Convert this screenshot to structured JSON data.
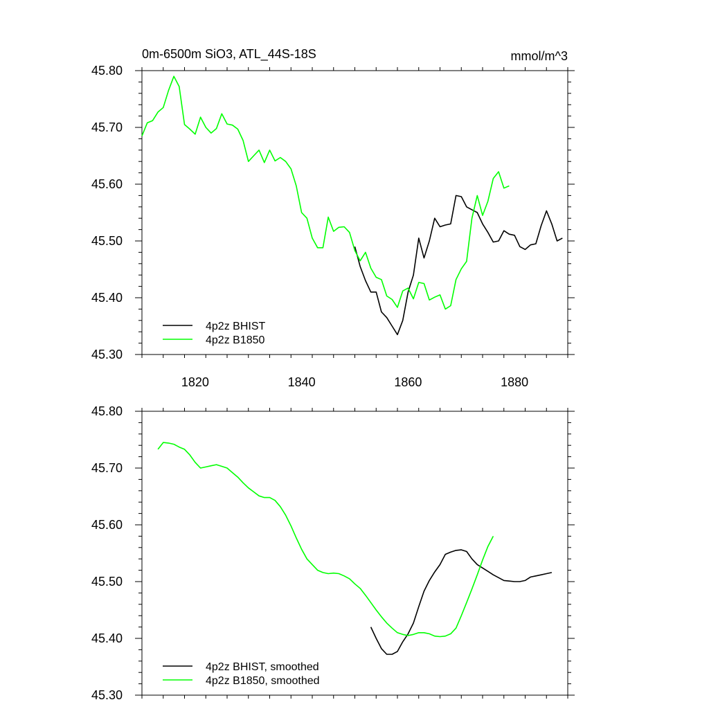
{
  "chart_data": [
    {
      "type": "line",
      "title": "0m-6500m SiO3, ATL_44S-18S",
      "units": "mmol/m^3",
      "xlim": [
        1810,
        1890
      ],
      "ylim": [
        45.3,
        45.8
      ],
      "xticks": [
        1820,
        1840,
        1860,
        1880
      ],
      "yticks": [
        "45.30",
        "45.40",
        "45.50",
        "45.60",
        "45.70",
        "45.80"
      ],
      "show_x_tick_labels": true,
      "series": [
        {
          "name": "4p2z BHIST",
          "color": "#000000",
          "x": [
            1850,
            1851,
            1852,
            1853,
            1854,
            1855,
            1856,
            1857,
            1858,
            1859,
            1860,
            1861,
            1862,
            1863,
            1864,
            1865,
            1866,
            1867,
            1868,
            1869,
            1870,
            1871,
            1872,
            1873,
            1874,
            1875,
            1876,
            1877,
            1878,
            1879,
            1880,
            1881,
            1882,
            1883,
            1884,
            1885,
            1886,
            1887,
            1888,
            1889
          ],
          "y": [
            45.49,
            45.455,
            45.43,
            45.41,
            45.41,
            45.375,
            45.365,
            45.35,
            45.335,
            45.36,
            45.41,
            45.44,
            45.505,
            45.47,
            45.5,
            45.54,
            45.525,
            45.528,
            45.53,
            45.58,
            45.578,
            45.56,
            45.555,
            45.55,
            45.53,
            45.515,
            45.498,
            45.5,
            45.518,
            45.512,
            45.51,
            45.49,
            45.485,
            45.493,
            45.495,
            45.527,
            45.553,
            45.53,
            45.5,
            45.505
          ]
        },
        {
          "name": "4p2z B1850",
          "color": "#00ff00",
          "x": [
            1810,
            1811,
            1812,
            1813,
            1814,
            1815,
            1816,
            1817,
            1818,
            1819,
            1820,
            1821,
            1822,
            1823,
            1824,
            1825,
            1826,
            1827,
            1828,
            1829,
            1830,
            1831,
            1832,
            1833,
            1834,
            1835,
            1836,
            1837,
            1838,
            1839,
            1840,
            1841,
            1842,
            1843,
            1844,
            1845,
            1846,
            1847,
            1848,
            1849,
            1850,
            1851,
            1852,
            1853,
            1854,
            1855,
            1856,
            1857,
            1858,
            1859,
            1860,
            1861,
            1862,
            1863,
            1864,
            1865,
            1866,
            1867,
            1868,
            1869,
            1870,
            1871,
            1872,
            1873,
            1874,
            1875,
            1876,
            1877,
            1878,
            1879
          ],
          "y": [
            45.685,
            45.708,
            45.712,
            45.727,
            45.735,
            45.765,
            45.79,
            45.772,
            45.705,
            45.697,
            45.688,
            45.718,
            45.7,
            45.69,
            45.698,
            45.724,
            45.706,
            45.704,
            45.697,
            45.677,
            45.64,
            45.65,
            45.66,
            45.638,
            45.66,
            45.641,
            45.647,
            45.64,
            45.627,
            45.597,
            45.55,
            45.54,
            45.505,
            45.488,
            45.488,
            45.542,
            45.517,
            45.524,
            45.525,
            45.515,
            45.483,
            45.465,
            45.48,
            45.452,
            45.436,
            45.432,
            45.403,
            45.397,
            45.383,
            45.412,
            45.417,
            45.398,
            45.427,
            45.425,
            45.396,
            45.401,
            45.405,
            45.38,
            45.386,
            45.432,
            45.451,
            45.464,
            45.54,
            45.58,
            45.545,
            45.57,
            45.61,
            45.622,
            45.593,
            45.597
          ]
        }
      ],
      "legend": {
        "position": "lower-left",
        "entries": [
          {
            "label": "4p2z BHIST",
            "color": "#000000"
          },
          {
            "label": "4p2z B1850",
            "color": "#00ff00"
          }
        ]
      }
    },
    {
      "type": "line",
      "title": "",
      "xlim": [
        1810,
        1890
      ],
      "ylim": [
        45.3,
        45.8
      ],
      "xticks": [
        1820,
        1840,
        1860,
        1880
      ],
      "yticks": [
        "45.30",
        "45.40",
        "45.50",
        "45.60",
        "45.70",
        "45.80"
      ],
      "show_x_tick_labels": false,
      "series": [
        {
          "name": "4p2z BHIST, smoothed",
          "color": "#000000",
          "x": [
            1853,
            1854,
            1855,
            1856,
            1857,
            1858,
            1859,
            1860,
            1861,
            1862,
            1863,
            1864,
            1865,
            1866,
            1867,
            1868,
            1869,
            1870,
            1871,
            1872,
            1873,
            1874,
            1875,
            1876,
            1877,
            1878,
            1879,
            1880,
            1881,
            1882,
            1883,
            1884,
            1885,
            1886,
            1887
          ],
          "y": [
            45.42,
            45.4,
            45.382,
            45.372,
            45.372,
            45.377,
            45.394,
            45.408,
            45.427,
            45.456,
            45.483,
            45.502,
            45.517,
            45.53,
            45.548,
            45.552,
            45.555,
            45.556,
            45.553,
            45.54,
            45.53,
            45.524,
            45.518,
            45.512,
            45.507,
            45.502,
            45.501,
            45.5,
            45.5,
            45.502,
            45.508,
            45.51,
            45.512,
            45.514,
            45.516
          ]
        },
        {
          "name": "4p2z B1850, smoothed",
          "color": "#00ff00",
          "x": [
            1813,
            1814,
            1815,
            1816,
            1817,
            1818,
            1819,
            1820,
            1821,
            1822,
            1823,
            1824,
            1825,
            1826,
            1827,
            1828,
            1829,
            1830,
            1831,
            1832,
            1833,
            1834,
            1835,
            1836,
            1837,
            1838,
            1839,
            1840,
            1841,
            1842,
            1843,
            1844,
            1845,
            1846,
            1847,
            1848,
            1849,
            1850,
            1851,
            1852,
            1853,
            1854,
            1855,
            1856,
            1857,
            1858,
            1859,
            1860,
            1861,
            1862,
            1863,
            1864,
            1865,
            1866,
            1867,
            1868,
            1869,
            1870,
            1871,
            1872,
            1873,
            1874,
            1875,
            1876
          ],
          "y": [
            45.733,
            45.745,
            45.744,
            45.742,
            45.737,
            45.733,
            45.723,
            45.71,
            45.7,
            45.702,
            45.704,
            45.706,
            45.703,
            45.7,
            45.692,
            45.684,
            45.674,
            45.665,
            45.658,
            45.651,
            45.648,
            45.648,
            45.643,
            45.632,
            45.617,
            45.598,
            45.577,
            45.557,
            45.54,
            45.53,
            45.52,
            45.516,
            45.514,
            45.515,
            45.514,
            45.51,
            45.505,
            45.496,
            45.488,
            45.476,
            45.463,
            45.45,
            45.438,
            45.427,
            45.418,
            45.41,
            45.407,
            45.405,
            45.407,
            45.41,
            45.41,
            45.408,
            45.404,
            45.403,
            45.404,
            45.408,
            45.418,
            45.44,
            45.463,
            45.487,
            45.512,
            45.538,
            45.562,
            45.58
          ]
        }
      ],
      "legend": {
        "position": "lower-left",
        "entries": [
          {
            "label": "4p2z BHIST, smoothed",
            "color": "#000000"
          },
          {
            "label": "4p2z B1850, smoothed",
            "color": "#00ff00"
          }
        ]
      }
    }
  ]
}
